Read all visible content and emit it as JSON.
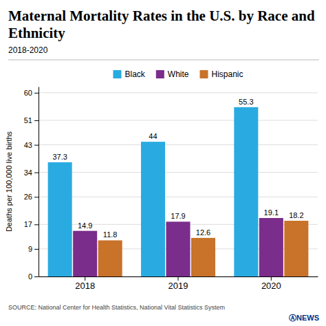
{
  "chart_data": {
    "type": "bar",
    "title": "Maternal Mortality Rates in the U.S. by Race and Ethnicity",
    "subtitle": "2018-2020",
    "y_label": "Deaths per 100,000 live births",
    "categories": [
      "2018",
      "2019",
      "2020"
    ],
    "series": [
      {
        "name": "Black",
        "color": "#29ABE2",
        "values": [
          37.3,
          44,
          55.3
        ]
      },
      {
        "name": "White",
        "color": "#7B2D8B",
        "values": [
          14.9,
          17.9,
          19.1
        ]
      },
      {
        "name": "Hispanic",
        "color": "#C8722A",
        "values": [
          11.8,
          12.6,
          18.2
        ]
      }
    ],
    "ylim": [
      0,
      62
    ],
    "yticks": [
      0,
      9,
      17,
      26,
      34,
      43,
      51,
      60
    ],
    "grid": true,
    "legend": "top",
    "data_labels": true,
    "annotations": [
      "SOURCE: National Center for Health Statistics, National Vital Statistics System",
      "ⒶNEWS"
    ]
  }
}
